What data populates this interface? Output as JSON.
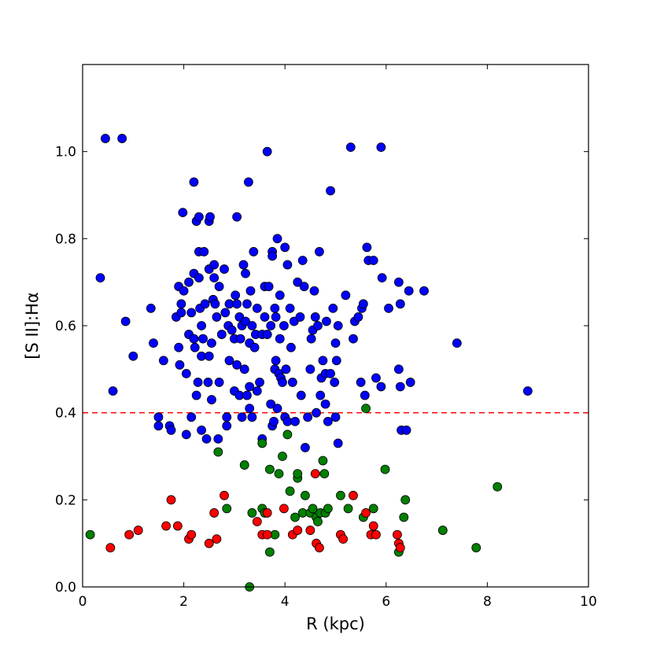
{
  "chart_data": {
    "type": "scatter",
    "xlabel": "R (kpc)",
    "ylabel": "[S II]:Hα",
    "xlim": [
      0,
      10
    ],
    "ylim": [
      0,
      1.2
    ],
    "x_ticks": [
      0,
      2,
      4,
      6,
      8,
      10
    ],
    "x_tick_labels": [
      "0",
      "2",
      "4",
      "6",
      "8",
      "10"
    ],
    "y_ticks": [
      0.0,
      0.2,
      0.4,
      0.6,
      0.8,
      1.0
    ],
    "y_tick_labels": [
      "0.0",
      "0.2",
      "0.4",
      "0.6",
      "0.8",
      "1.0"
    ],
    "grid": false,
    "threshold": {
      "y": 0.4,
      "color": "#ff0000",
      "style": "dashed"
    },
    "series": [
      {
        "color": "#0000ff",
        "points": [
          [
            0.45,
            1.03
          ],
          [
            0.78,
            1.03
          ],
          [
            0.35,
            0.71
          ],
          [
            0.6,
            0.45
          ],
          [
            0.85,
            0.61
          ],
          [
            1.0,
            0.53
          ],
          [
            1.35,
            0.64
          ],
          [
            1.4,
            0.56
          ],
          [
            1.5,
            0.39
          ],
          [
            1.5,
            0.37
          ],
          [
            1.6,
            0.52
          ],
          [
            1.72,
            0.37
          ],
          [
            1.75,
            0.36
          ],
          [
            1.85,
            0.62
          ],
          [
            1.9,
            0.55
          ],
          [
            1.9,
            0.69
          ],
          [
            1.92,
            0.51
          ],
          [
            1.95,
            0.65
          ],
          [
            1.95,
            0.63
          ],
          [
            1.98,
            0.86
          ],
          [
            2.0,
            0.68
          ],
          [
            2.05,
            0.49
          ],
          [
            2.05,
            0.35
          ],
          [
            2.1,
            0.58
          ],
          [
            2.1,
            0.7
          ],
          [
            2.15,
            0.63
          ],
          [
            2.15,
            0.39
          ],
          [
            2.2,
            0.93
          ],
          [
            2.2,
            0.72
          ],
          [
            2.2,
            0.57
          ],
          [
            2.22,
            0.55
          ],
          [
            2.25,
            0.84
          ],
          [
            2.25,
            0.44
          ],
          [
            2.28,
            0.47
          ],
          [
            2.3,
            0.77
          ],
          [
            2.3,
            0.85
          ],
          [
            2.3,
            0.71
          ],
          [
            2.32,
            0.64
          ],
          [
            2.35,
            0.6
          ],
          [
            2.35,
            0.53
          ],
          [
            2.35,
            0.36
          ],
          [
            2.38,
            0.57
          ],
          [
            2.4,
            0.77
          ],
          [
            2.42,
            0.65
          ],
          [
            2.45,
            0.34
          ],
          [
            2.48,
            0.47
          ],
          [
            2.5,
            0.73
          ],
          [
            2.5,
            0.84
          ],
          [
            2.5,
            0.53
          ],
          [
            2.52,
            0.85
          ],
          [
            2.55,
            0.56
          ],
          [
            2.55,
            0.43
          ],
          [
            2.58,
            0.66
          ],
          [
            2.6,
            0.74
          ],
          [
            2.6,
            0.71
          ],
          [
            2.62,
            0.65
          ],
          [
            2.65,
            0.62
          ],
          [
            2.68,
            0.34
          ],
          [
            2.7,
            0.69
          ],
          [
            2.7,
            0.47
          ],
          [
            2.75,
            0.58
          ],
          [
            2.8,
            0.73
          ],
          [
            2.82,
            0.63
          ],
          [
            2.85,
            0.37
          ],
          [
            2.85,
            0.39
          ],
          [
            2.88,
            0.6
          ],
          [
            2.9,
            0.65
          ],
          [
            2.9,
            0.52
          ],
          [
            2.95,
            0.59
          ],
          [
            3.0,
            0.45
          ],
          [
            3.0,
            0.57
          ],
          [
            3.02,
            0.67
          ],
          [
            3.05,
            0.85
          ],
          [
            3.05,
            0.65
          ],
          [
            3.05,
            0.51
          ],
          [
            3.1,
            0.62
          ],
          [
            3.1,
            0.44
          ],
          [
            3.12,
            0.57
          ],
          [
            3.15,
            0.6
          ],
          [
            3.15,
            0.39
          ],
          [
            3.18,
            0.74
          ],
          [
            3.2,
            0.5
          ],
          [
            3.22,
            0.72
          ],
          [
            3.22,
            0.61
          ],
          [
            3.25,
            0.44
          ],
          [
            3.25,
            0.65
          ],
          [
            3.28,
            0.93
          ],
          [
            3.3,
            0.46
          ],
          [
            3.3,
            0.41
          ],
          [
            3.3,
            0.56
          ],
          [
            3.32,
            0.68
          ],
          [
            3.35,
            0.6
          ],
          [
            3.35,
            0.39
          ],
          [
            3.38,
            0.77
          ],
          [
            3.4,
            0.55
          ],
          [
            3.42,
            0.58
          ],
          [
            3.45,
            0.45
          ],
          [
            3.45,
            0.64
          ],
          [
            3.5,
            0.47
          ],
          [
            3.55,
            0.58
          ],
          [
            3.55,
            0.34
          ],
          [
            3.6,
            0.69
          ],
          [
            3.6,
            0.62
          ],
          [
            3.65,
            0.58
          ],
          [
            3.65,
            1.0
          ],
          [
            3.68,
            0.69
          ],
          [
            3.72,
            0.42
          ],
          [
            3.72,
            0.6
          ],
          [
            3.75,
            0.77
          ],
          [
            3.75,
            0.76
          ],
          [
            3.75,
            0.37
          ],
          [
            3.78,
            0.38
          ],
          [
            3.8,
            0.64
          ],
          [
            3.8,
            0.5
          ],
          [
            3.82,
            0.52
          ],
          [
            3.82,
            0.62
          ],
          [
            3.85,
            0.8
          ],
          [
            3.85,
            0.41
          ],
          [
            3.88,
            0.49
          ],
          [
            3.9,
            0.67
          ],
          [
            3.9,
            0.57
          ],
          [
            3.92,
            0.48
          ],
          [
            3.95,
            0.47
          ],
          [
            3.98,
            0.6
          ],
          [
            4.0,
            0.78
          ],
          [
            4.0,
            0.39
          ],
          [
            4.02,
            0.5
          ],
          [
            4.05,
            0.74
          ],
          [
            4.05,
            0.38
          ],
          [
            4.1,
            0.64
          ],
          [
            4.12,
            0.55
          ],
          [
            4.15,
            0.47
          ],
          [
            4.18,
            0.61
          ],
          [
            4.2,
            0.38
          ],
          [
            4.25,
            0.7
          ],
          [
            4.3,
            0.62
          ],
          [
            4.32,
            0.44
          ],
          [
            4.35,
            0.75
          ],
          [
            4.38,
            0.69
          ],
          [
            4.4,
            0.32
          ],
          [
            4.45,
            0.39
          ],
          [
            4.5,
            0.5
          ],
          [
            4.52,
            0.57
          ],
          [
            4.55,
            0.59
          ],
          [
            4.58,
            0.68
          ],
          [
            4.6,
            0.62
          ],
          [
            4.62,
            0.4
          ],
          [
            4.65,
            0.6
          ],
          [
            4.68,
            0.77
          ],
          [
            4.7,
            0.44
          ],
          [
            4.72,
            0.48
          ],
          [
            4.75,
            0.52
          ],
          [
            4.8,
            0.49
          ],
          [
            4.8,
            0.42
          ],
          [
            4.82,
            0.61
          ],
          [
            4.85,
            0.38
          ],
          [
            4.9,
            0.91
          ],
          [
            4.9,
            0.49
          ],
          [
            4.95,
            0.64
          ],
          [
            4.98,
            0.47
          ],
          [
            5.0,
            0.56
          ],
          [
            5.0,
            0.39
          ],
          [
            5.02,
            0.52
          ],
          [
            5.05,
            0.6
          ],
          [
            5.05,
            0.33
          ],
          [
            5.2,
            0.67
          ],
          [
            5.3,
            1.01
          ],
          [
            5.35,
            0.57
          ],
          [
            5.38,
            0.61
          ],
          [
            5.45,
            0.62
          ],
          [
            5.5,
            0.47
          ],
          [
            5.52,
            0.64
          ],
          [
            5.55,
            0.65
          ],
          [
            5.58,
            0.44
          ],
          [
            5.62,
            0.78
          ],
          [
            5.65,
            0.75
          ],
          [
            5.75,
            0.75
          ],
          [
            5.8,
            0.48
          ],
          [
            5.9,
            1.01
          ],
          [
            5.9,
            0.46
          ],
          [
            5.92,
            0.71
          ],
          [
            6.05,
            0.64
          ],
          [
            6.25,
            0.7
          ],
          [
            6.25,
            0.5
          ],
          [
            6.28,
            0.46
          ],
          [
            6.28,
            0.65
          ],
          [
            6.3,
            0.36
          ],
          [
            6.4,
            0.36
          ],
          [
            6.45,
            0.68
          ],
          [
            6.48,
            0.47
          ],
          [
            6.75,
            0.68
          ],
          [
            7.4,
            0.56
          ],
          [
            8.8,
            0.45
          ]
        ]
      },
      {
        "color": "#008000",
        "points": [
          [
            0.15,
            0.12
          ],
          [
            2.68,
            0.31
          ],
          [
            2.85,
            0.18
          ],
          [
            3.2,
            0.28
          ],
          [
            3.3,
            0.0
          ],
          [
            3.35,
            0.17
          ],
          [
            3.55,
            0.33
          ],
          [
            3.55,
            0.18
          ],
          [
            3.6,
            0.17
          ],
          [
            3.7,
            0.27
          ],
          [
            3.7,
            0.08
          ],
          [
            3.8,
            0.12
          ],
          [
            3.88,
            0.26
          ],
          [
            3.95,
            0.3
          ],
          [
            4.05,
            0.35
          ],
          [
            4.1,
            0.22
          ],
          [
            4.2,
            0.16
          ],
          [
            4.25,
            0.25
          ],
          [
            4.25,
            0.26
          ],
          [
            4.35,
            0.17
          ],
          [
            4.4,
            0.21
          ],
          [
            4.5,
            0.17
          ],
          [
            4.55,
            0.18
          ],
          [
            4.62,
            0.16
          ],
          [
            4.65,
            0.15
          ],
          [
            4.7,
            0.17
          ],
          [
            4.75,
            0.29
          ],
          [
            4.78,
            0.26
          ],
          [
            4.8,
            0.17
          ],
          [
            4.85,
            0.18
          ],
          [
            5.1,
            0.21
          ],
          [
            5.25,
            0.18
          ],
          [
            5.55,
            0.16
          ],
          [
            5.6,
            0.41
          ],
          [
            5.75,
            0.18
          ],
          [
            5.98,
            0.27
          ],
          [
            6.25,
            0.08
          ],
          [
            6.35,
            0.16
          ],
          [
            6.38,
            0.2
          ],
          [
            7.12,
            0.13
          ],
          [
            7.78,
            0.09
          ],
          [
            8.2,
            0.23
          ]
        ]
      },
      {
        "color": "#ff0000",
        "points": [
          [
            0.55,
            0.09
          ],
          [
            0.92,
            0.12
          ],
          [
            1.1,
            0.13
          ],
          [
            1.65,
            0.14
          ],
          [
            1.75,
            0.2
          ],
          [
            1.88,
            0.14
          ],
          [
            2.1,
            0.11
          ],
          [
            2.15,
            0.12
          ],
          [
            2.5,
            0.1
          ],
          [
            2.6,
            0.17
          ],
          [
            2.65,
            0.11
          ],
          [
            2.8,
            0.21
          ],
          [
            3.45,
            0.15
          ],
          [
            3.55,
            0.12
          ],
          [
            3.65,
            0.17
          ],
          [
            3.65,
            0.12
          ],
          [
            3.98,
            0.18
          ],
          [
            4.15,
            0.12
          ],
          [
            4.25,
            0.13
          ],
          [
            4.5,
            0.13
          ],
          [
            4.6,
            0.26
          ],
          [
            4.62,
            0.1
          ],
          [
            4.68,
            0.09
          ],
          [
            5.1,
            0.12
          ],
          [
            5.15,
            0.11
          ],
          [
            5.35,
            0.21
          ],
          [
            5.6,
            0.17
          ],
          [
            5.7,
            0.12
          ],
          [
            5.75,
            0.14
          ],
          [
            5.8,
            0.12
          ],
          [
            6.22,
            0.12
          ],
          [
            6.25,
            0.1
          ],
          [
            6.28,
            0.09
          ]
        ]
      }
    ]
  }
}
